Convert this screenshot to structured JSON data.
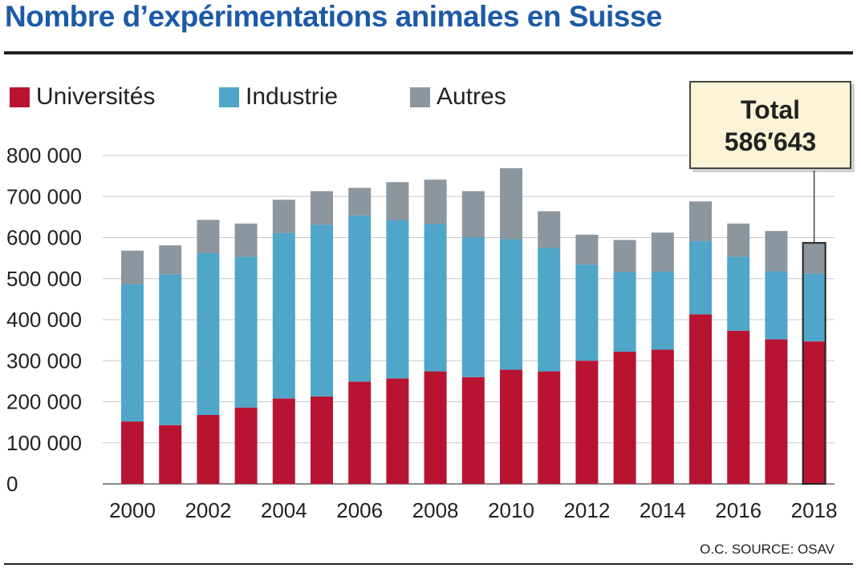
{
  "chart_data": {
    "type": "bar",
    "stacked": true,
    "title": "Nombre d’expérimentations animales en Suisse",
    "source": "O.C. SOURCE: OSAV",
    "x": [
      2000,
      2001,
      2002,
      2003,
      2004,
      2005,
      2006,
      2007,
      2008,
      2009,
      2010,
      2011,
      2012,
      2013,
      2014,
      2015,
      2016,
      2017,
      2018
    ],
    "xtick_labels": [
      "2000",
      "2002",
      "2004",
      "2006",
      "2008",
      "2010",
      "2012",
      "2014",
      "2016",
      "2018"
    ],
    "xtick_values": [
      2000,
      2002,
      2004,
      2006,
      2008,
      2010,
      2012,
      2014,
      2016,
      2018
    ],
    "ylim": [
      0,
      800000
    ],
    "yticks": [
      0,
      100000,
      200000,
      300000,
      400000,
      500000,
      600000,
      700000,
      800000
    ],
    "ytick_labels": [
      "0",
      "100 000",
      "200 000",
      "300 000",
      "400 000",
      "500 000",
      "600 000",
      "700 000",
      "800 000"
    ],
    "grid": true,
    "legend_position": "top-left",
    "series": [
      {
        "name": "Universités",
        "color": "#b81432",
        "values": [
          152000,
          143000,
          168000,
          186000,
          208000,
          213000,
          249000,
          257000,
          274000,
          260000,
          278000,
          274000,
          300000,
          322000,
          327000,
          413000,
          373000,
          352000,
          347000
        ]
      },
      {
        "name": "Industrie",
        "color": "#4fa6c9",
        "values": [
          334000,
          367000,
          394000,
          367000,
          403000,
          418000,
          405000,
          385000,
          359000,
          340000,
          318000,
          301000,
          234000,
          194000,
          190000,
          178000,
          180000,
          166000,
          165000
        ]
      },
      {
        "name": "Autres",
        "color": "#8c969f",
        "values": [
          82000,
          71000,
          81000,
          81000,
          81000,
          82000,
          67000,
          93000,
          108000,
          113000,
          173000,
          89000,
          73000,
          78000,
          95000,
          97000,
          81000,
          98000,
          75000
        ]
      }
    ],
    "highlight": {
      "year": 2018,
      "label": "Total",
      "value_text": "586′643"
    }
  }
}
